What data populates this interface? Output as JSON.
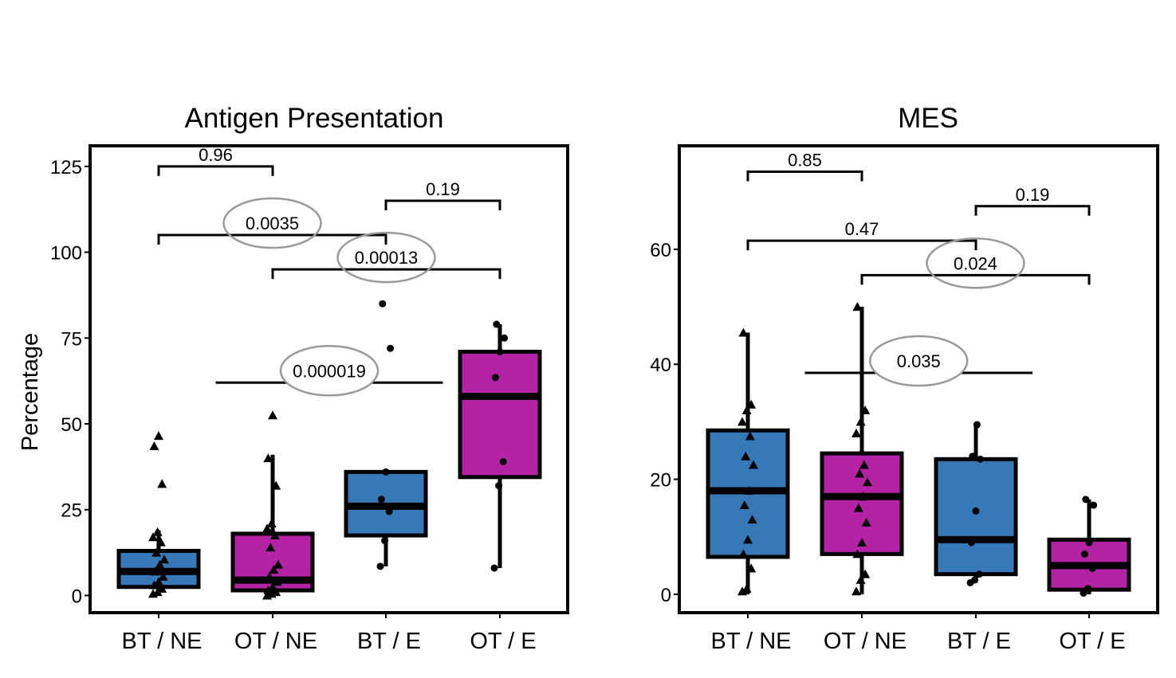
{
  "figure": {
    "ylabel": "Percentage"
  },
  "chart_data": [
    {
      "type": "box",
      "title": "Antigen Presentation",
      "xlabel": "",
      "ylabel": "Percentage",
      "ylim": [
        -5,
        131
      ],
      "yticks": [
        0,
        25,
        50,
        75,
        100,
        125
      ],
      "categories": [
        "BT / NE",
        "OT / NE",
        "BT / E",
        "OT / E"
      ],
      "colors": [
        "#3779b6",
        "#b422a6",
        "#3779b6",
        "#b422a6"
      ],
      "point_markers": [
        "triangle",
        "triangle",
        "circle",
        "circle"
      ],
      "boxes": [
        {
          "group": "BT / NE",
          "whisker_low": 0,
          "q1": 2.5,
          "median": 7,
          "q3": 13,
          "whisker_high": 19
        },
        {
          "group": "OT / NE",
          "whisker_low": 0,
          "q1": 1.5,
          "median": 4.5,
          "q3": 18,
          "whisker_high": 41
        },
        {
          "group": "BT / E",
          "whisker_low": 8.5,
          "q1": 17.5,
          "median": 26,
          "q3": 36,
          "whisker_high": 36
        },
        {
          "group": "OT / E",
          "whisker_low": 8,
          "q1": 34.5,
          "median": 58,
          "q3": 71,
          "whisker_high": 79
        }
      ],
      "points": [
        [
          0.5,
          1,
          2,
          3,
          4,
          5.5,
          7,
          9,
          10.5,
          12.5,
          15.5,
          17,
          18.5,
          32.5,
          43.5,
          46.5
        ],
        [
          0,
          0.5,
          1,
          1.5,
          2.5,
          4,
          5.5,
          7.5,
          9,
          14,
          17.5,
          19.5,
          21,
          32,
          40,
          52.5
        ],
        [
          8.5,
          16,
          24.5,
          28,
          36,
          72,
          85
        ],
        [
          8,
          32,
          39,
          63.5,
          71,
          75,
          79
        ]
      ],
      "comparisons": [
        {
          "from": "BT / NE",
          "to": "OT / NE",
          "p": "0.96",
          "y": 125,
          "highlight": false
        },
        {
          "from": "BT / E",
          "to": "OT / E",
          "p": "0.19",
          "y": 115,
          "highlight": false
        },
        {
          "from": "BT / NE",
          "to": "BT / E",
          "p": "0.0035",
          "y": 105,
          "highlight": true
        },
        {
          "from": "OT / NE",
          "to": "OT / E",
          "p": "0.00013",
          "y": 95,
          "highlight": true
        }
      ],
      "group_comparison": {
        "p": "0.000019",
        "y": 62,
        "highlight": true
      }
    },
    {
      "type": "box",
      "title": "MES",
      "xlabel": "",
      "ylabel": "",
      "ylim": [
        -3.2,
        78
      ],
      "yticks": [
        0,
        20,
        40,
        60
      ],
      "categories": [
        "BT / NE",
        "OT / NE",
        "BT / E",
        "OT / E"
      ],
      "colors": [
        "#3779b6",
        "#b422a6",
        "#3779b6",
        "#b422a6"
      ],
      "point_markers": [
        "triangle",
        "triangle",
        "circle",
        "circle"
      ],
      "boxes": [
        {
          "group": "BT / NE",
          "whisker_low": 0,
          "q1": 6.5,
          "median": 18,
          "q3": 28.5,
          "whisker_high": 45.5
        },
        {
          "group": "OT / NE",
          "whisker_low": 0,
          "q1": 7,
          "median": 17,
          "q3": 24.5,
          "whisker_high": 50
        },
        {
          "group": "BT / E",
          "whisker_low": 2,
          "q1": 3.5,
          "median": 9.5,
          "q3": 23.5,
          "whisker_high": 29.5
        },
        {
          "group": "OT / E",
          "whisker_low": 0,
          "q1": 0.8,
          "median": 5,
          "q3": 9.5,
          "whisker_high": 16.5
        }
      ],
      "points": [
        [
          0.5,
          1,
          4.5,
          7,
          9.5,
          13,
          15.5,
          18,
          22.5,
          24,
          27.5,
          30,
          32,
          33,
          45.5
        ],
        [
          0.5,
          2.5,
          3.5,
          7,
          9,
          12.5,
          15,
          17,
          19.5,
          21,
          22.5,
          28,
          30,
          32,
          50
        ],
        [
          2,
          2.5,
          3.5,
          9,
          14.5,
          23.5,
          24,
          29.5
        ],
        [
          0.2,
          1,
          4.5,
          7,
          9,
          15.5,
          16.5
        ]
      ],
      "comparisons": [
        {
          "from": "BT / NE",
          "to": "OT / NE",
          "p": "0.85",
          "y": 73.5,
          "highlight": false
        },
        {
          "from": "BT / E",
          "to": "OT / E",
          "p": "0.19",
          "y": 67.5,
          "highlight": false
        },
        {
          "from": "BT / NE",
          "to": "BT / E",
          "p": "0.47",
          "y": 61.5,
          "highlight": false
        },
        {
          "from": "OT / NE",
          "to": "OT / E",
          "p": "0.024",
          "y": 55.5,
          "highlight": true
        }
      ],
      "group_comparison": {
        "p": "0.035",
        "y": 38.5,
        "highlight": true
      }
    }
  ]
}
